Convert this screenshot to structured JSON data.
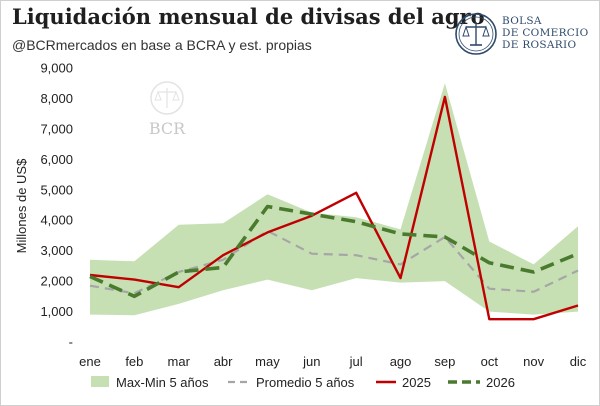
{
  "header": {
    "title": "Liquidación mensual de divisas del agro",
    "subtitle": "@BCRmercados en base a BCRA y est. propias"
  },
  "logo": {
    "lines": [
      "BOLSA",
      "DE COMERCIO",
      "DE ROSARIO"
    ],
    "color": "#2e4a6b"
  },
  "watermark": {
    "text": "BCR"
  },
  "chart_data": {
    "type": "line",
    "title": "Liquidación mensual de divisas del agro",
    "ylabel": "Millones de US$",
    "xlabel": "",
    "ylim": [
      0,
      9000
    ],
    "ytick_values": [
      0,
      1000,
      2000,
      3000,
      4000,
      5000,
      6000,
      7000,
      8000,
      9000
    ],
    "ytick_labels": [
      "-",
      "1,000",
      "2,000",
      "3,000",
      "4,000",
      "5,000",
      "6,000",
      "7,000",
      "8,000",
      "9,000"
    ],
    "categories": [
      "ene",
      "feb",
      "mar",
      "abr",
      "may",
      "jun",
      "jul",
      "ago",
      "sep",
      "oct",
      "nov",
      "dic"
    ],
    "band": {
      "name": "Max-Min 5 años",
      "color": "#c6e0b4",
      "upper": [
        2700,
        2650,
        3850,
        3900,
        4850,
        4250,
        4100,
        3700,
        8500,
        3300,
        2550,
        3800
      ],
      "lower": [
        900,
        880,
        1250,
        1700,
        2050,
        1700,
        2100,
        1950,
        2000,
        1000,
        900,
        1000
      ]
    },
    "series": [
      {
        "name": "Promedio 5 años",
        "color": "#a6a6a6",
        "style": "dashed",
        "values": [
          1850,
          1600,
          2300,
          2700,
          3650,
          2900,
          2850,
          2550,
          3450,
          1750,
          1650,
          2350
        ]
      },
      {
        "name": "2025",
        "color": "#c00000",
        "style": "solid",
        "values": [
          2200,
          2050,
          1800,
          2850,
          3600,
          4150,
          4900,
          2100,
          8050,
          750,
          750,
          1200
        ]
      },
      {
        "name": "2026",
        "color": "#4a7a2e",
        "style": "dashed",
        "values": [
          2150,
          1500,
          2300,
          2450,
          4450,
          4200,
          3950,
          3550,
          3450,
          2600,
          2300,
          2900
        ]
      }
    ],
    "legend": {
      "position": "bottom",
      "entries": [
        "Max-Min 5 años",
        "Promedio 5 años",
        "2025",
        "2026"
      ]
    },
    "grid": false
  }
}
